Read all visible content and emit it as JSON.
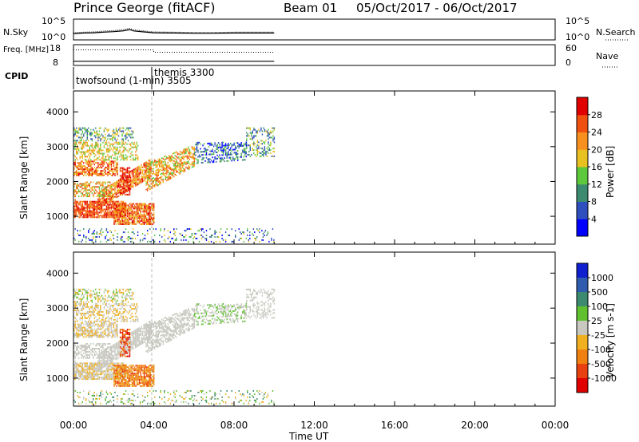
{
  "header": {
    "title": "Prince George (fitACF)",
    "beam": "Beam 01",
    "date_range": "05/Oct/2017 - 06/Oct/2017"
  },
  "chart_data": [
    {
      "type": "line",
      "name": "nsky-panel",
      "ylabel_left": "N.Sky",
      "ylabel_right": "N.Search",
      "left_ticks": [
        "10^5",
        "10^0"
      ],
      "right_ticks": [
        "10^5",
        "10^0"
      ],
      "x_range_hours": [
        0,
        24
      ],
      "series": [
        {
          "values_x": [
            0.0,
            0.5,
            1,
            1.5,
            2,
            2.5,
            2.8,
            3,
            3.5,
            4,
            5,
            6,
            7,
            8,
            9,
            10
          ],
          "values_y": [
            0.55,
            0.6,
            0.62,
            0.68,
            0.72,
            0.8,
            0.9,
            0.78,
            0.7,
            0.62,
            0.6,
            0.58,
            0.58,
            0.6,
            0.6,
            0.6
          ]
        }
      ]
    },
    {
      "type": "line",
      "name": "freq-panel",
      "ylabel_left": "Freq. [MHz]",
      "ylabel_right": "Nave",
      "left_ticks": [
        "18",
        "8"
      ],
      "right_ticks": [
        "60",
        "0"
      ],
      "x_range_hours": [
        0,
        24
      ],
      "series": [
        {
          "name": "freq",
          "x": [
            0,
            10
          ],
          "y": [
            10,
            10
          ]
        },
        {
          "name": "nave",
          "x": [
            0,
            4,
            4,
            10
          ],
          "y": [
            45,
            45,
            38,
            38
          ]
        }
      ]
    },
    {
      "type": "table",
      "name": "cpid-panel",
      "label": "CPID",
      "entries": [
        {
          "text": "twofsound (1-min) 3505",
          "start_hour": 0
        },
        {
          "text": "themis 3300",
          "start_hour": 4
        }
      ]
    },
    {
      "type": "heatmap",
      "name": "power-panel",
      "ylabel": "Slant Range [km]",
      "y_ticks": [
        1000,
        2000,
        3000,
        4000
      ],
      "ylim": [
        200,
        4600
      ],
      "x_range_hours": [
        0,
        24
      ],
      "colorbar_label": "Power [dB]",
      "colorbar_ticks": [
        4,
        8,
        12,
        16,
        20,
        24,
        28
      ],
      "colorbar_colors": [
        "#0000ff",
        "#2f4fbf",
        "#3c8a70",
        "#5cc83c",
        "#e8c020",
        "#f89020",
        "#f05010",
        "#e00000"
      ]
    },
    {
      "type": "heatmap",
      "name": "velocity-panel",
      "ylabel": "Slant Range [km]",
      "y_ticks": [
        1000,
        2000,
        3000,
        4000
      ],
      "ylim": [
        200,
        4600
      ],
      "x_range_hours": [
        0,
        24
      ],
      "xlabel": "Time UT",
      "x_ticks": [
        "00:00",
        "04:00",
        "08:00",
        "12:00",
        "16:00",
        "20:00",
        "00:00"
      ],
      "colorbar_label": "Velocity [m s-1]",
      "colorbar_ticks": [
        "1000",
        "500",
        "100",
        "25",
        "-25",
        "-100",
        "-500",
        "-1000"
      ],
      "colorbar_colors": [
        "#1020d0",
        "#305cb0",
        "#3c8a70",
        "#60c030",
        "#c8c8c0",
        "#f0b020",
        "#f08010",
        "#e84010",
        "#e00000"
      ]
    }
  ]
}
